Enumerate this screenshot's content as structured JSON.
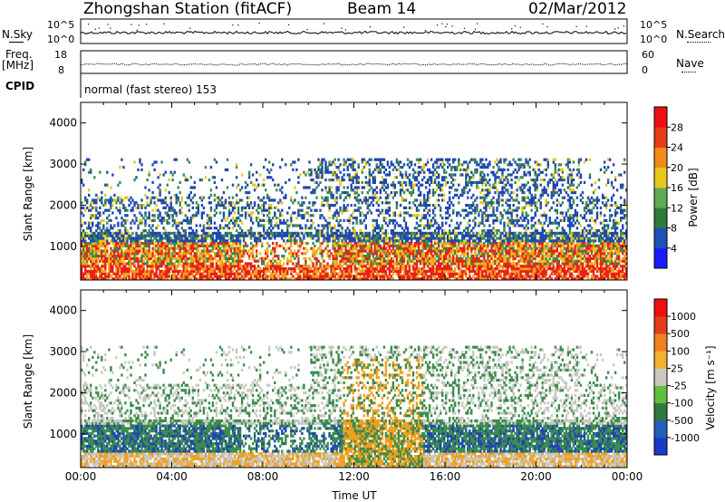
{
  "header": {
    "station": "Zhongshan Station (fitACF)",
    "beam": "Beam 14",
    "date": "02/Mar/2012"
  },
  "aux": {
    "nsky_label": "N.Sky",
    "nsky_ticks": [
      "10^5",
      "10^0"
    ],
    "nsearch_label": "N.Search",
    "nsearch_ticks": [
      "10^5",
      "10^0"
    ],
    "freq_label": "Freq.",
    "freq_unit": "[MHz]",
    "freq_ticks": [
      "18",
      "8"
    ],
    "nave_label": "Nave",
    "nave_ticks": [
      "60",
      "0"
    ],
    "cpid_label": "CPID",
    "cpid_text": "normal (fast stereo) 153"
  },
  "chart_data": [
    {
      "type": "heatmap",
      "name": "power",
      "ylabel": "Slant Range [km]",
      "ylim": [
        180,
        4500
      ],
      "yticks": [
        "1000",
        "2000",
        "3000",
        "4000"
      ],
      "ytick_values": [
        1000,
        2000,
        3000,
        4000
      ],
      "xlim": [
        0,
        24
      ],
      "colorbar": {
        "label": "Power [dB]",
        "ticks": [
          "4",
          "8",
          "12",
          "16",
          "20",
          "24",
          "28"
        ],
        "colors": [
          "#1a1aff",
          "#1e50b8",
          "#2f7a3c",
          "#5faa55",
          "#e8c81a",
          "#f08a1a",
          "#e63c1a",
          "#ee1010"
        ]
      }
    },
    {
      "type": "heatmap",
      "name": "velocity",
      "ylabel": "Slant Range [km]",
      "ylim": [
        180,
        4500
      ],
      "yticks": [
        "1000",
        "2000",
        "3000",
        "4000"
      ],
      "ytick_values": [
        1000,
        2000,
        3000,
        4000
      ],
      "xlim": [
        0,
        24
      ],
      "xticks": [
        "00:00",
        "04:00",
        "08:00",
        "12:00",
        "16:00",
        "20:00",
        "00:00"
      ],
      "xtick_values": [
        0,
        4,
        8,
        12,
        16,
        20,
        24
      ],
      "xlabel": "Time UT",
      "colorbar": {
        "label": "Velocity [m s⁻¹]",
        "ticks": [
          "1000",
          "500",
          "100",
          "25",
          "-25",
          "-100",
          "-500",
          "-1000"
        ],
        "colors": [
          "#1a3ac8",
          "#2060b8",
          "#2f7a3c",
          "#5fbf40",
          "#c8c8c0",
          "#f0b030",
          "#f08020",
          "#e63c1a",
          "#ee1010"
        ]
      }
    }
  ],
  "colors": {
    "gray": "#c8c8c0",
    "green": "#3c8c4c",
    "blue": "#2048b0",
    "orange": "#f0a020",
    "red": "#e8201a",
    "yellow": "#e8c81a"
  }
}
